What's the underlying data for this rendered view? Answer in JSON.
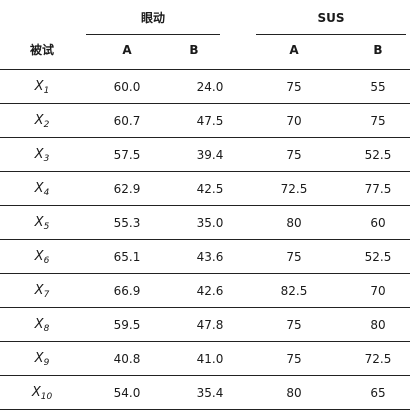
{
  "table": {
    "groups": [
      "眼动",
      "SUS"
    ],
    "headers": {
      "subject": "被试",
      "eye_a": "A",
      "eye_b": "B",
      "sus_a": "A",
      "sus_b": "B"
    },
    "rows": [
      {
        "subject": "X",
        "sub": "1",
        "eye_a": "60.0",
        "eye_b": "24.0",
        "sus_a": "75",
        "sus_b": "55"
      },
      {
        "subject": "X",
        "sub": "2",
        "eye_a": "60.7",
        "eye_b": "47.5",
        "sus_a": "70",
        "sus_b": "75"
      },
      {
        "subject": "X",
        "sub": "3",
        "eye_a": "57.5",
        "eye_b": "39.4",
        "sus_a": "75",
        "sus_b": "52.5"
      },
      {
        "subject": "X",
        "sub": "4",
        "eye_a": "62.9",
        "eye_b": "42.5",
        "sus_a": "72.5",
        "sus_b": "77.5"
      },
      {
        "subject": "X",
        "sub": "5",
        "eye_a": "55.3",
        "eye_b": "35.0",
        "sus_a": "80",
        "sus_b": "60"
      },
      {
        "subject": "X",
        "sub": "6",
        "eye_a": "65.1",
        "eye_b": "43.6",
        "sus_a": "75",
        "sus_b": "52.5"
      },
      {
        "subject": "X",
        "sub": "7",
        "eye_a": "66.9",
        "eye_b": "42.6",
        "sus_a": "82.5",
        "sus_b": "70"
      },
      {
        "subject": "X",
        "sub": "8",
        "eye_a": "59.5",
        "eye_b": "47.8",
        "sus_a": "75",
        "sus_b": "80"
      },
      {
        "subject": "X",
        "sub": "9",
        "eye_a": "40.8",
        "eye_b": "41.0",
        "sus_a": "75",
        "sus_b": "72.5"
      },
      {
        "subject": "X",
        "sub": "10",
        "eye_a": "54.0",
        "eye_b": "35.4",
        "sus_a": "80",
        "sus_b": "65"
      }
    ]
  }
}
